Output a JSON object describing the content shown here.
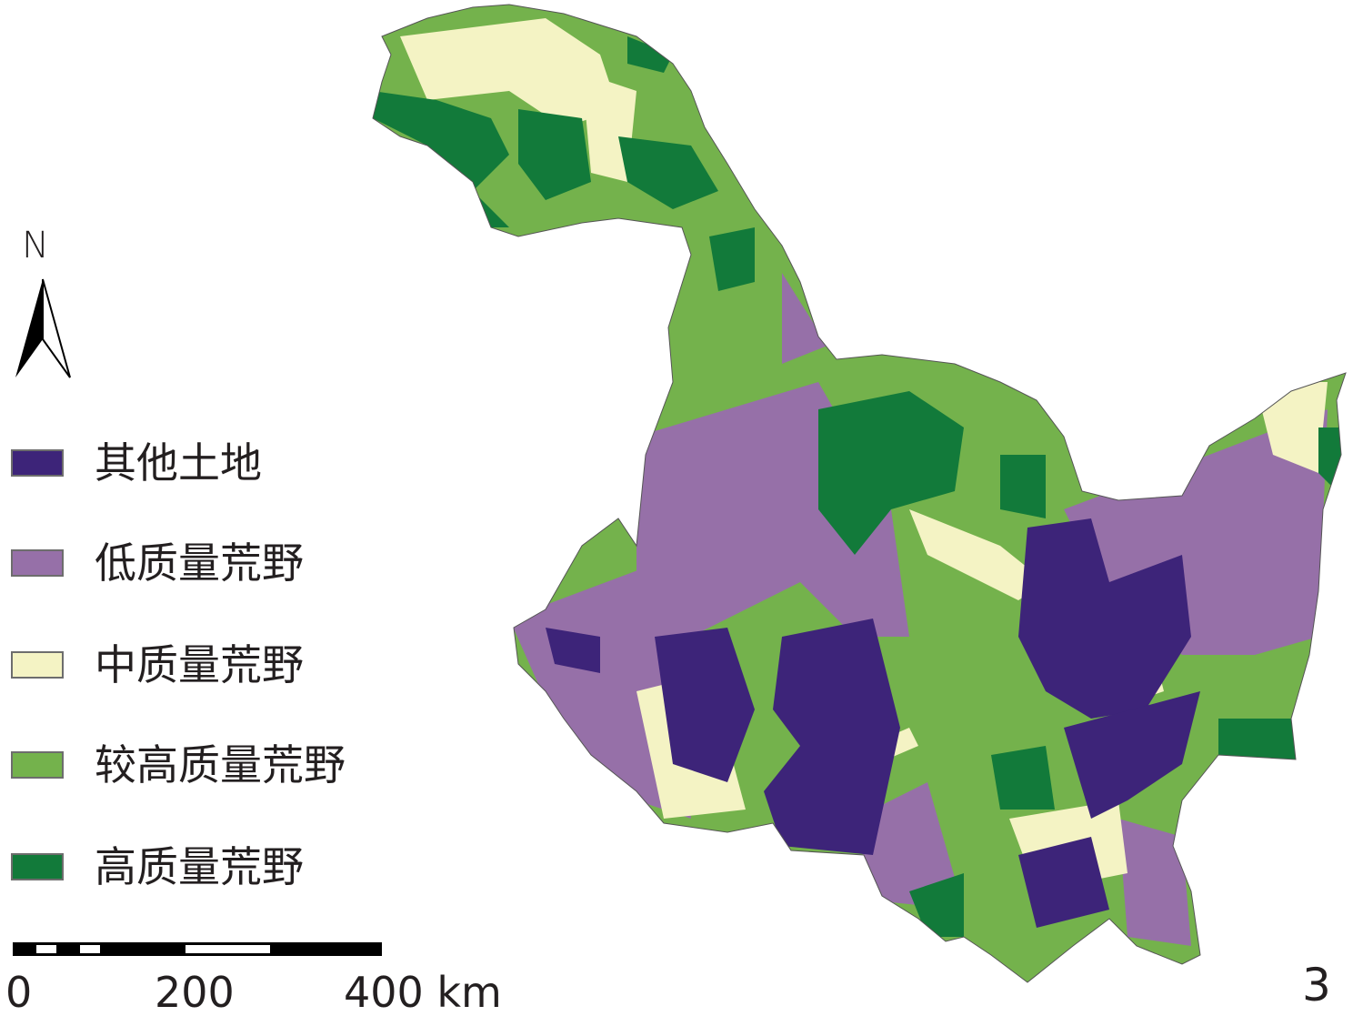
{
  "map": {
    "classes": [
      {
        "label": "其他土地",
        "color": "#3d2479"
      },
      {
        "label": "低质量荒野",
        "color": "#9670a8"
      },
      {
        "label": "中质量荒野",
        "color": "#f4f3c4"
      },
      {
        "label": "较高质量荒野",
        "color": "#74b24c"
      },
      {
        "label": "高质量荒野",
        "color": "#127a3a"
      }
    ]
  },
  "north_arrow": {
    "label": "N"
  },
  "scale_bar": {
    "labels": [
      "0",
      "200",
      "400 km"
    ]
  },
  "panel_number": "3"
}
